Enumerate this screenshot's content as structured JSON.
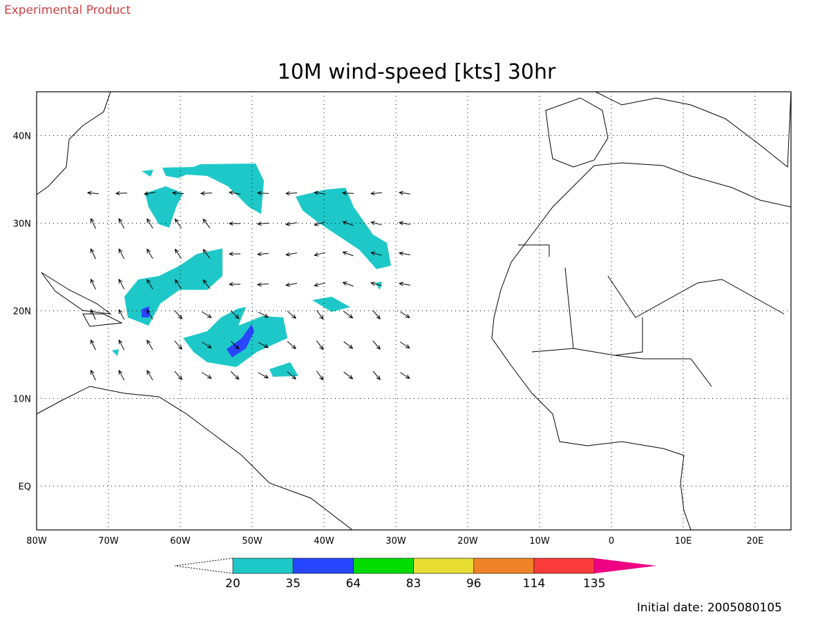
{
  "header": {
    "label": "Experimental Product"
  },
  "title": "10M wind-speed [kts] 30hr",
  "map": {
    "lonlim": [
      -80,
      25
    ],
    "latlim": [
      -5,
      45
    ],
    "lonticks": [
      {
        "value": -80,
        "label": "80W"
      },
      {
        "value": -70,
        "label": "70W"
      },
      {
        "value": -60,
        "label": "60W"
      },
      {
        "value": -50,
        "label": "50W"
      },
      {
        "value": -40,
        "label": "40W"
      },
      {
        "value": -30,
        "label": "30W"
      },
      {
        "value": -20,
        "label": "20W"
      },
      {
        "value": -10,
        "label": "10W"
      },
      0,
      {
        "value": 10,
        "label": "10E"
      },
      {
        "value": 20,
        "label": "20E"
      }
    ],
    "latticks": [
      {
        "value": 0,
        "label": "EQ"
      },
      {
        "value": 10,
        "label": "10N"
      },
      {
        "value": 20,
        "label": "20N"
      },
      {
        "value": 30,
        "label": "30N"
      },
      {
        "value": 40,
        "label": "40N"
      }
    ]
  },
  "colorbar": {
    "levels": [
      20,
      35,
      64,
      83,
      96,
      114,
      135
    ],
    "colors": [
      "#1ec8c8",
      "#2846ff",
      "#00dc00",
      "#e6dc32",
      "#f08228",
      "#fa3c3c",
      "#f00082"
    ]
  },
  "footer": "Initial date: 2005080105"
}
